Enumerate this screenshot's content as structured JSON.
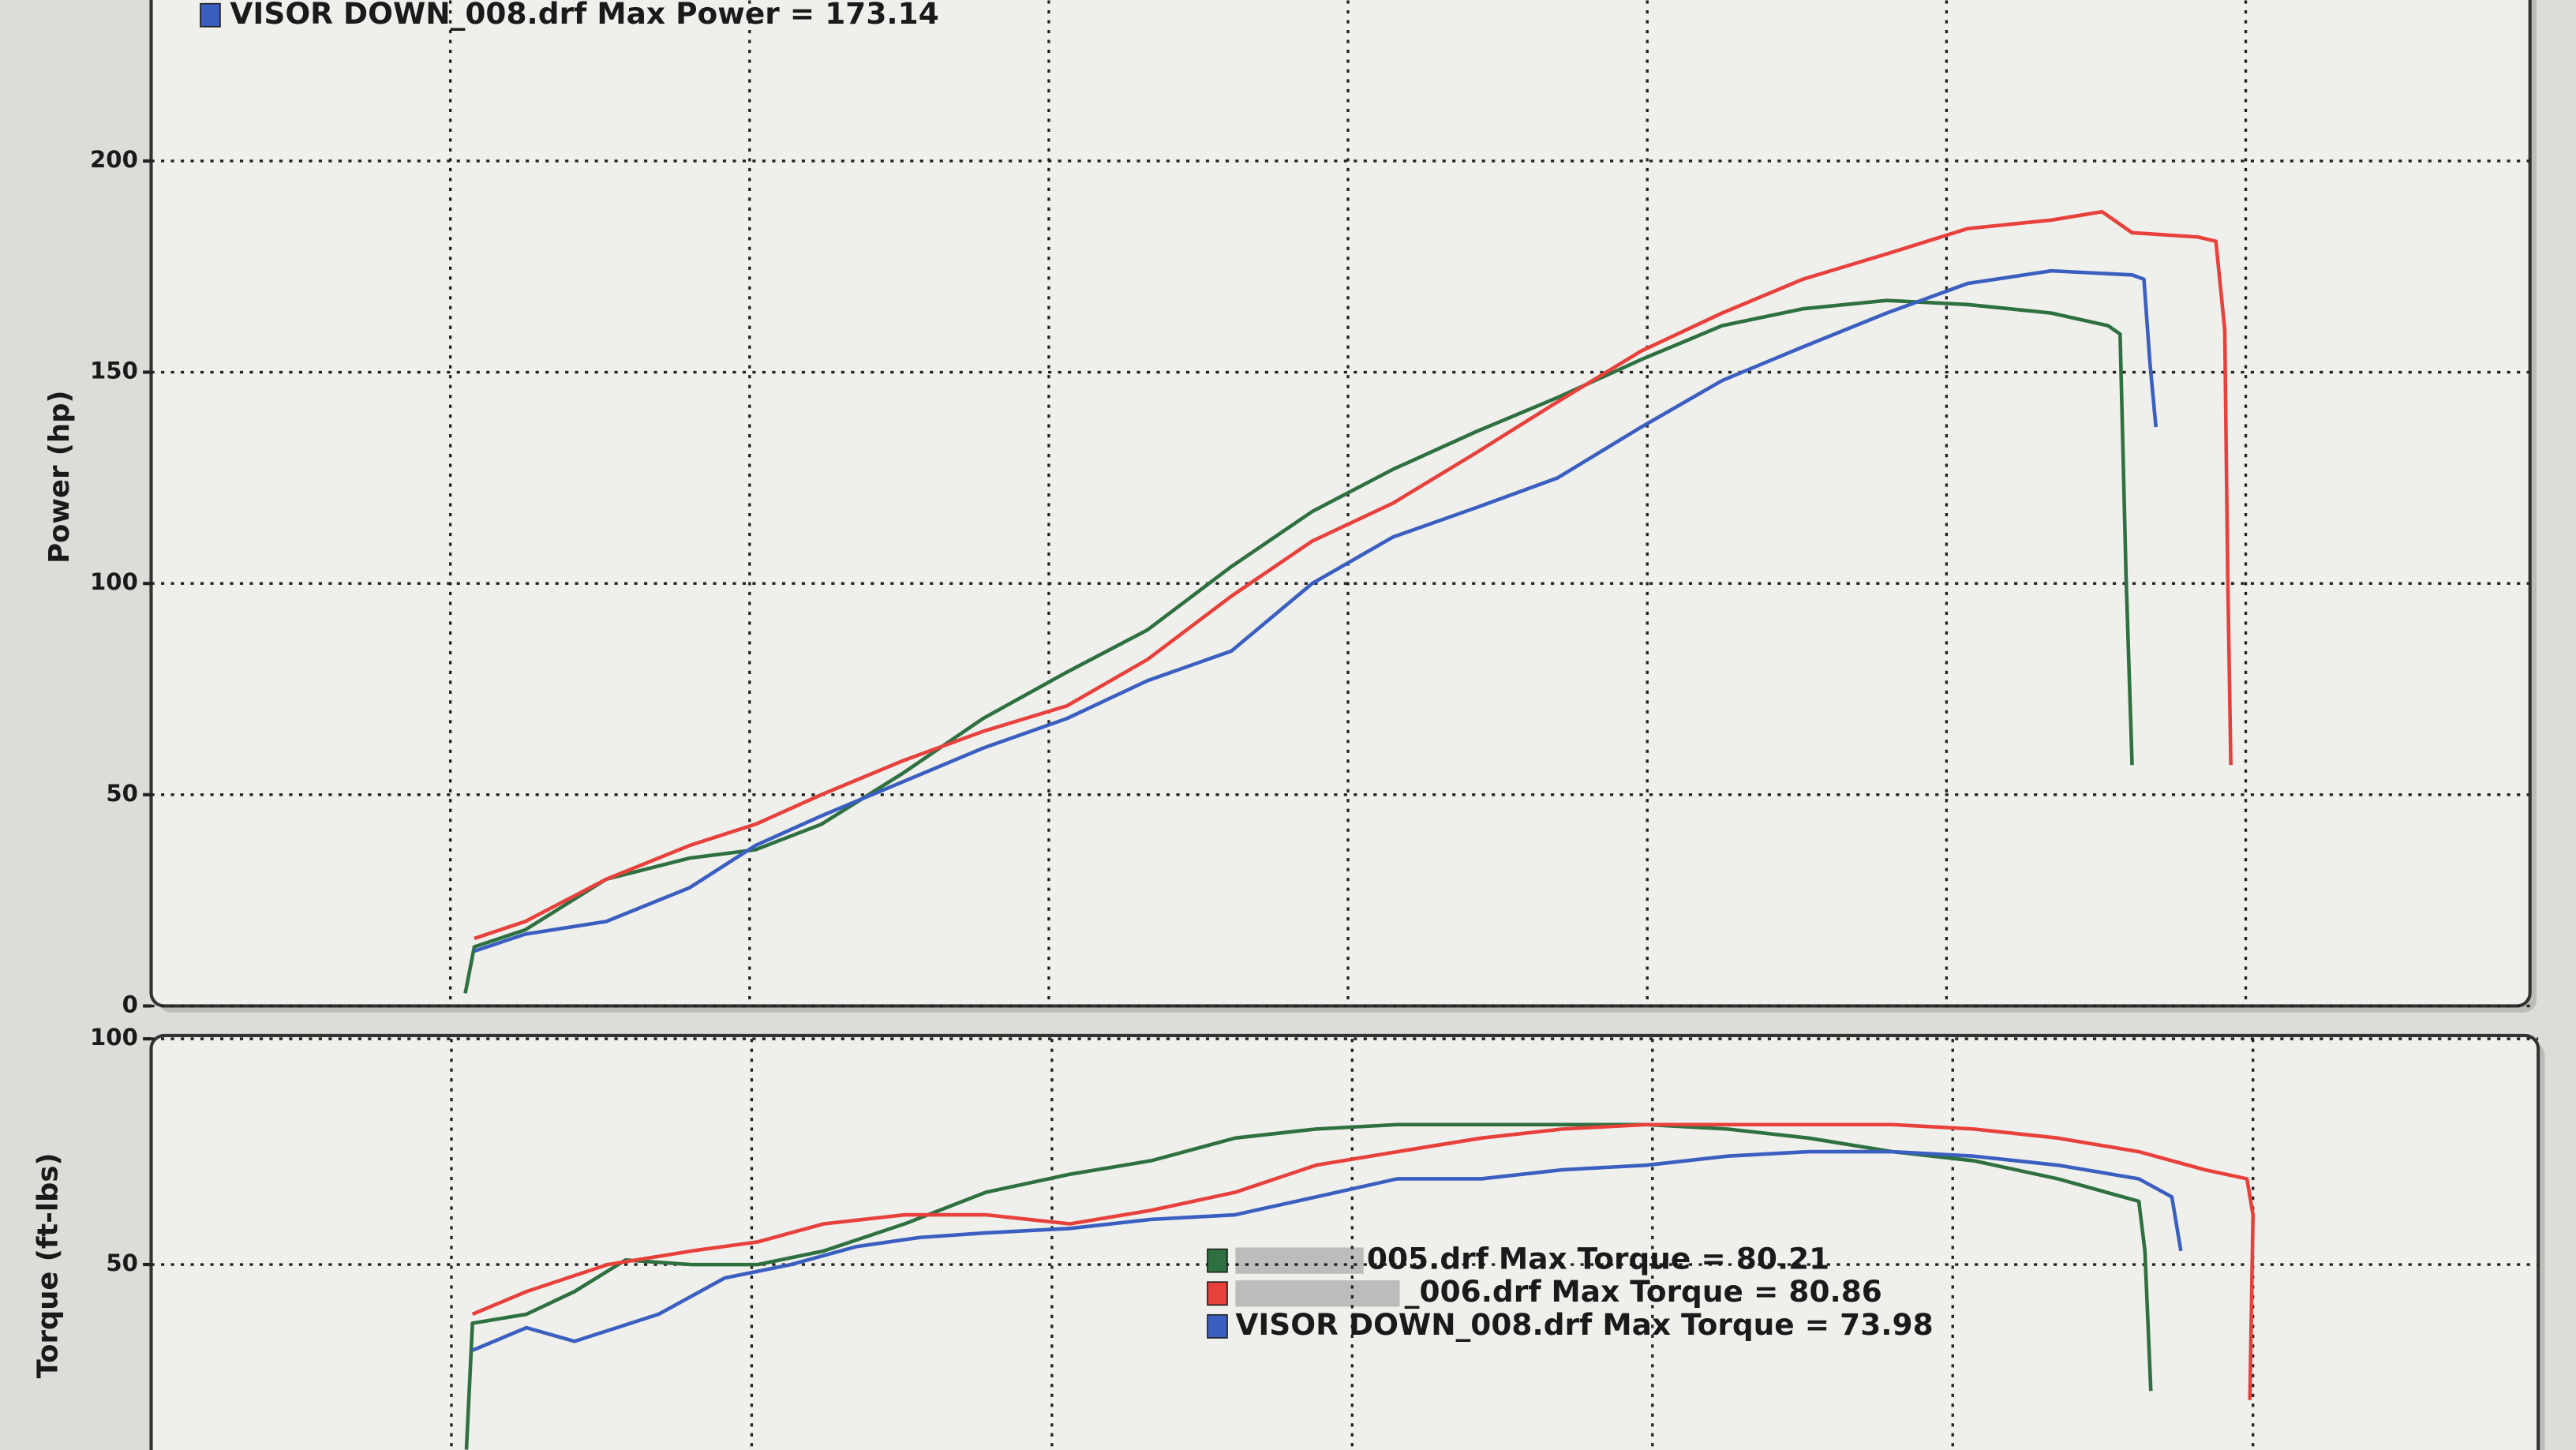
{
  "chart_data": [
    {
      "type": "line",
      "ylabel": "Power (hp)",
      "ylim": [
        0,
        238
      ],
      "yticks": [
        0,
        50,
        100,
        150,
        200
      ],
      "xlim": [
        0,
        7.95
      ],
      "xticks": [
        1,
        2,
        3,
        4,
        5,
        6,
        7
      ],
      "grid": true,
      "series": [
        {
          "color": "#2e7040",
          "x": [
            1.05,
            1.08,
            1.25,
            1.52,
            1.8,
            2.02,
            2.24,
            2.51,
            2.78,
            3.06,
            3.33,
            3.61,
            3.88,
            4.15,
            4.43,
            4.7,
            4.98,
            5.25,
            5.52,
            5.8,
            6.07,
            6.35,
            6.54,
            6.58,
            6.6,
            6.62
          ],
          "values": [
            3,
            14,
            18,
            30,
            35,
            37,
            43,
            55,
            68,
            79,
            89,
            104,
            117,
            127,
            136,
            144,
            153,
            161,
            165,
            167,
            166,
            164,
            161,
            159,
            102,
            57
          ]
        },
        {
          "color": "#e8413c",
          "x": [
            1.08,
            1.25,
            1.52,
            1.8,
            2.02,
            2.24,
            2.51,
            2.78,
            3.06,
            3.33,
            3.61,
            3.88,
            4.15,
            4.43,
            4.7,
            4.98,
            5.25,
            5.52,
            5.8,
            6.07,
            6.35,
            6.52,
            6.62,
            6.84,
            6.9,
            6.93,
            6.94,
            6.95
          ],
          "values": [
            16,
            20,
            30,
            38,
            43,
            50,
            58,
            65,
            71,
            82,
            97,
            110,
            119,
            131,
            143,
            155,
            164,
            172,
            178,
            184,
            186,
            188,
            183,
            182,
            181,
            160,
            102,
            57
          ]
        },
        {
          "name": "VISOR DOWN_008.drf Max Power = 173.14",
          "color": "#3a5fc0",
          "x": [
            1.08,
            1.25,
            1.52,
            1.8,
            2.02,
            2.24,
            2.51,
            2.78,
            3.06,
            3.33,
            3.61,
            3.88,
            4.15,
            4.43,
            4.7,
            4.98,
            5.25,
            5.52,
            5.8,
            6.07,
            6.35,
            6.62,
            6.66,
            6.68,
            6.7
          ],
          "values": [
            13,
            17,
            20,
            28,
            38,
            45,
            53,
            61,
            68,
            77,
            84,
            100,
            111,
            118,
            125,
            137,
            148,
            156,
            164,
            171,
            174,
            173,
            172,
            152,
            137
          ]
        }
      ]
    },
    {
      "type": "line",
      "ylabel": "Torque (ft-lbs)",
      "ylim": [
        9,
        100
      ],
      "yticks": [
        50,
        100
      ],
      "xlim": [
        0,
        7.95
      ],
      "xticks": [
        1,
        2,
        3,
        4,
        5,
        6,
        7
      ],
      "grid": true,
      "series": [
        {
          "name": "005.drf Max Torque = 80.21",
          "color": "#2e7040",
          "x": [
            1.05,
            1.07,
            1.25,
            1.41,
            1.58,
            1.8,
            2.02,
            2.24,
            2.51,
            2.78,
            3.06,
            3.33,
            3.61,
            3.88,
            4.15,
            4.43,
            4.7,
            4.98,
            5.25,
            5.52,
            5.8,
            6.07,
            6.35,
            6.62,
            6.64,
            6.66
          ],
          "values": [
            9,
            37,
            39,
            44,
            51,
            50,
            50,
            53,
            59,
            66,
            70,
            73,
            78,
            80,
            81,
            81,
            81,
            81,
            80,
            78,
            75,
            73,
            69,
            64,
            53,
            22
          ]
        },
        {
          "name": "_006.drf Max Torque = 80.86",
          "color": "#e8413c",
          "x": [
            1.07,
            1.25,
            1.52,
            1.8,
            2.02,
            2.24,
            2.51,
            2.78,
            3.06,
            3.33,
            3.61,
            3.88,
            4.15,
            4.43,
            4.7,
            4.98,
            5.25,
            5.52,
            5.8,
            6.07,
            6.35,
            6.62,
            6.84,
            6.98,
            7.0,
            6.99
          ],
          "values": [
            39,
            44,
            50,
            53,
            55,
            59,
            61,
            61,
            59,
            62,
            66,
            72,
            75,
            78,
            80,
            81,
            81,
            81,
            81,
            80,
            78,
            75,
            71,
            69,
            61,
            20
          ]
        },
        {
          "name": "VISOR DOWN_008.drf Max Torque = 73.98",
          "color": "#3a5fc0",
          "x": [
            1.07,
            1.25,
            1.41,
            1.69,
            1.91,
            2.13,
            2.35,
            2.56,
            2.78,
            3.06,
            3.33,
            3.61,
            3.88,
            4.15,
            4.43,
            4.7,
            4.98,
            5.25,
            5.52,
            5.8,
            6.07,
            6.35,
            6.62,
            6.73,
            6.76
          ],
          "values": [
            31,
            36,
            33,
            39,
            47,
            50,
            54,
            56,
            57,
            58,
            60,
            61,
            65,
            69,
            69,
            71,
            72,
            74,
            75,
            75,
            74,
            72,
            69,
            65,
            53
          ]
        }
      ]
    }
  ]
}
